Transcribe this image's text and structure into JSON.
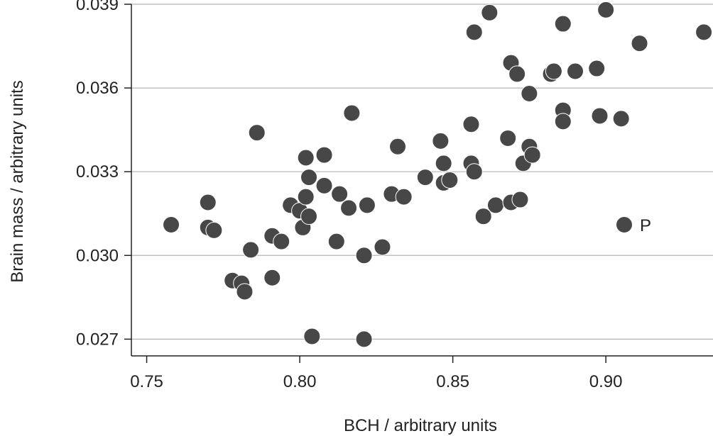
{
  "chart_data": {
    "type": "scatter",
    "title": "",
    "xlabel": "BCH / arbitrary units",
    "ylabel": "Brain mass / arbitrary units",
    "xlim": [
      0.745,
      0.935
    ],
    "ylim": [
      0.0264,
      0.039
    ],
    "xticks": [
      0.75,
      0.8,
      0.85,
      0.9
    ],
    "xtick_labels": [
      "0.75",
      "0.80",
      "0.85",
      "0.90"
    ],
    "yticks": [
      0.027,
      0.03,
      0.033,
      0.036,
      0.039
    ],
    "ytick_labels": [
      "0.027",
      "0.030",
      "0.033",
      "0.036",
      "0.039"
    ],
    "grid": "horizontal",
    "legend": "none",
    "marker_color": "#474747",
    "gridline_color": "#b4b4b4",
    "annotations": [
      {
        "text": "P",
        "x": 0.906,
        "y": 0.0311
      }
    ],
    "points": [
      {
        "x": 0.758,
        "y": 0.0311
      },
      {
        "x": 0.77,
        "y": 0.0319
      },
      {
        "x": 0.77,
        "y": 0.031
      },
      {
        "x": 0.772,
        "y": 0.0309
      },
      {
        "x": 0.778,
        "y": 0.0291
      },
      {
        "x": 0.781,
        "y": 0.029
      },
      {
        "x": 0.782,
        "y": 0.0287
      },
      {
        "x": 0.784,
        "y": 0.0302
      },
      {
        "x": 0.786,
        "y": 0.0344
      },
      {
        "x": 0.791,
        "y": 0.0292
      },
      {
        "x": 0.791,
        "y": 0.0307
      },
      {
        "x": 0.794,
        "y": 0.0305
      },
      {
        "x": 0.797,
        "y": 0.0318
      },
      {
        "x": 0.8,
        "y": 0.0316
      },
      {
        "x": 0.801,
        "y": 0.031
      },
      {
        "x": 0.802,
        "y": 0.0321
      },
      {
        "x": 0.802,
        "y": 0.0335
      },
      {
        "x": 0.803,
        "y": 0.0314
      },
      {
        "x": 0.803,
        "y": 0.0328
      },
      {
        "x": 0.804,
        "y": 0.0271
      },
      {
        "x": 0.808,
        "y": 0.0325
      },
      {
        "x": 0.808,
        "y": 0.0336
      },
      {
        "x": 0.812,
        "y": 0.0305
      },
      {
        "x": 0.813,
        "y": 0.0322
      },
      {
        "x": 0.816,
        "y": 0.0317
      },
      {
        "x": 0.817,
        "y": 0.0351
      },
      {
        "x": 0.821,
        "y": 0.027
      },
      {
        "x": 0.821,
        "y": 0.03
      },
      {
        "x": 0.822,
        "y": 0.0318
      },
      {
        "x": 0.827,
        "y": 0.0303
      },
      {
        "x": 0.83,
        "y": 0.0322
      },
      {
        "x": 0.832,
        "y": 0.0339
      },
      {
        "x": 0.834,
        "y": 0.0321
      },
      {
        "x": 0.841,
        "y": 0.0328
      },
      {
        "x": 0.846,
        "y": 0.0341
      },
      {
        "x": 0.847,
        "y": 0.0333
      },
      {
        "x": 0.847,
        "y": 0.0326
      },
      {
        "x": 0.849,
        "y": 0.0327
      },
      {
        "x": 0.856,
        "y": 0.0347
      },
      {
        "x": 0.856,
        "y": 0.0333
      },
      {
        "x": 0.857,
        "y": 0.033
      },
      {
        "x": 0.857,
        "y": 0.038
      },
      {
        "x": 0.86,
        "y": 0.0314
      },
      {
        "x": 0.862,
        "y": 0.0387
      },
      {
        "x": 0.864,
        "y": 0.0318
      },
      {
        "x": 0.868,
        "y": 0.0342
      },
      {
        "x": 0.869,
        "y": 0.0369
      },
      {
        "x": 0.869,
        "y": 0.0319
      },
      {
        "x": 0.871,
        "y": 0.0365
      },
      {
        "x": 0.872,
        "y": 0.032
      },
      {
        "x": 0.873,
        "y": 0.0333
      },
      {
        "x": 0.875,
        "y": 0.0339
      },
      {
        "x": 0.875,
        "y": 0.0358
      },
      {
        "x": 0.876,
        "y": 0.0336
      },
      {
        "x": 0.882,
        "y": 0.0365
      },
      {
        "x": 0.883,
        "y": 0.0366
      },
      {
        "x": 0.886,
        "y": 0.0383
      },
      {
        "x": 0.886,
        "y": 0.0352
      },
      {
        "x": 0.886,
        "y": 0.0348
      },
      {
        "x": 0.89,
        "y": 0.0366
      },
      {
        "x": 0.897,
        "y": 0.0367
      },
      {
        "x": 0.898,
        "y": 0.035
      },
      {
        "x": 0.9,
        "y": 0.0388
      },
      {
        "x": 0.905,
        "y": 0.0349
      },
      {
        "x": 0.906,
        "y": 0.0311
      },
      {
        "x": 0.911,
        "y": 0.0376
      },
      {
        "x": 0.932,
        "y": 0.038
      }
    ]
  }
}
